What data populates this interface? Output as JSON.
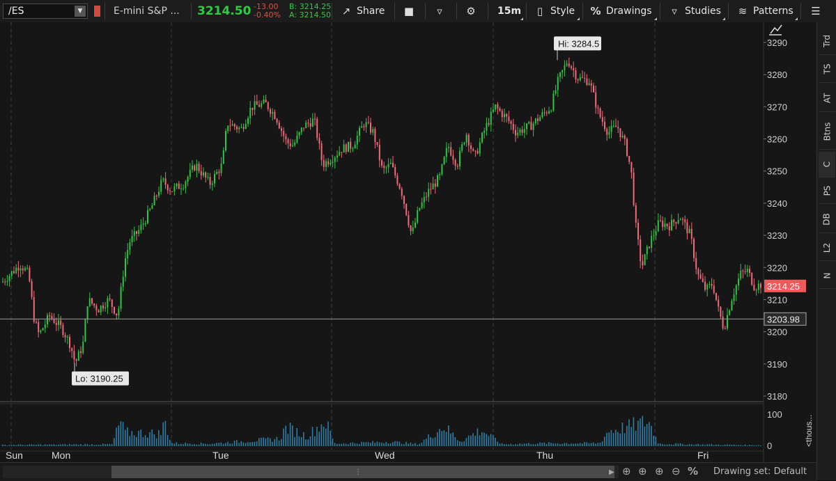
{
  "toolbar": {
    "symbol": "/ES",
    "instrument_name": "E-mini S&P ...",
    "last_price": "3214.50",
    "net_change": "-13.00",
    "pct_change": "-0.40%",
    "bid": "B: 3214.25",
    "ask": "A: 3214.50",
    "share_label": "Share",
    "timeframe": "15m",
    "style_label": "Style",
    "drawings_label": "Drawings",
    "studies_label": "Studies",
    "patterns_label": "Patterns",
    "colors": {
      "last_price": "#2ecc40",
      "change": "#e74c3c",
      "bidask": "#2ecc40"
    }
  },
  "right_panel": {
    "tabs": [
      "Trd",
      "TS",
      "AT",
      "Btns",
      "C",
      "PS",
      "DB",
      "L2",
      "N"
    ],
    "active": "C"
  },
  "bottom_bar": {
    "drawing_set": "Drawing set: Default"
  },
  "chart_data": {
    "type": "candlestick",
    "price_axis": {
      "min": 3180,
      "max": 3290,
      "ticks": [
        3180,
        3190,
        3200,
        3210,
        3220,
        3230,
        3240,
        3250,
        3260,
        3270,
        3280,
        3290
      ]
    },
    "volume_axis": {
      "ticks": [
        "0",
        "100"
      ],
      "unit_label": "<thous..."
    },
    "days": [
      "Sun",
      "Mon",
      "Tue",
      "Wed",
      "Thu",
      "Fri"
    ],
    "high_label": "Hi: 3284.5",
    "low_label": "Lo: 3190.25",
    "last_price_label": "3214.25",
    "crosshair_price_label": "3203.98",
    "crosshair_price": 3203.98,
    "high": 3284.5,
    "low": 3190.25,
    "last": 3214.25,
    "path_keypoints": [
      [
        0,
        3215
      ],
      [
        28,
        3221
      ],
      [
        40,
        3218
      ],
      [
        48,
        3204
      ],
      [
        55,
        3199
      ],
      [
        70,
        3205
      ],
      [
        88,
        3201
      ],
      [
        100,
        3196
      ],
      [
        107,
        3190.25
      ],
      [
        118,
        3196
      ],
      [
        125,
        3210
      ],
      [
        140,
        3207
      ],
      [
        155,
        3210
      ],
      [
        168,
        3205
      ],
      [
        178,
        3222
      ],
      [
        185,
        3228
      ],
      [
        200,
        3232
      ],
      [
        215,
        3238
      ],
      [
        232,
        3247
      ],
      [
        245,
        3244
      ],
      [
        262,
        3246
      ],
      [
        280,
        3252
      ],
      [
        300,
        3246
      ],
      [
        318,
        3252
      ],
      [
        325,
        3265
      ],
      [
        345,
        3263
      ],
      [
        360,
        3270
      ],
      [
        380,
        3271
      ],
      [
        395,
        3267
      ],
      [
        410,
        3259
      ],
      [
        420,
        3258
      ],
      [
        435,
        3264
      ],
      [
        450,
        3266
      ],
      [
        462,
        3252
      ],
      [
        475,
        3254
      ],
      [
        490,
        3257
      ],
      [
        505,
        3258
      ],
      [
        522,
        3265
      ],
      [
        535,
        3262
      ],
      [
        548,
        3250
      ],
      [
        560,
        3252
      ],
      [
        575,
        3244
      ],
      [
        590,
        3230
      ],
      [
        600,
        3238
      ],
      [
        615,
        3244
      ],
      [
        630,
        3248
      ],
      [
        642,
        3258
      ],
      [
        655,
        3252
      ],
      [
        668,
        3262
      ],
      [
        680,
        3254
      ],
      [
        695,
        3263
      ],
      [
        710,
        3270
      ],
      [
        728,
        3266
      ],
      [
        740,
        3262
      ],
      [
        760,
        3264
      ],
      [
        775,
        3267
      ],
      [
        790,
        3270
      ],
      [
        800,
        3278
      ],
      [
        814,
        3284.5
      ],
      [
        828,
        3279
      ],
      [
        845,
        3278
      ],
      [
        858,
        3268
      ],
      [
        872,
        3262
      ],
      [
        885,
        3264
      ],
      [
        897,
        3258
      ],
      [
        905,
        3250
      ],
      [
        912,
        3232
      ],
      [
        920,
        3220
      ],
      [
        932,
        3228
      ],
      [
        945,
        3234
      ],
      [
        960,
        3233
      ],
      [
        975,
        3236
      ],
      [
        990,
        3230
      ],
      [
        1000,
        3218
      ],
      [
        1012,
        3213
      ],
      [
        1022,
        3215
      ],
      [
        1030,
        3207
      ],
      [
        1038,
        3201
      ],
      [
        1050,
        3211
      ],
      [
        1062,
        3218
      ],
      [
        1072,
        3219
      ],
      [
        1082,
        3214
      ],
      [
        1094,
        3215
      ]
    ],
    "volume_profile": [
      [
        0,
        5
      ],
      [
        160,
        8
      ],
      [
        172,
        100
      ],
      [
        178,
        55
      ],
      [
        230,
        50
      ],
      [
        236,
        100
      ],
      [
        245,
        12
      ],
      [
        300,
        10
      ],
      [
        400,
        30
      ],
      [
        410,
        75
      ],
      [
        440,
        40
      ],
      [
        466,
        100
      ],
      [
        480,
        10
      ],
      [
        560,
        18
      ],
      [
        600,
        8
      ],
      [
        636,
        80
      ],
      [
        660,
        20
      ],
      [
        690,
        65
      ],
      [
        720,
        8
      ],
      [
        780,
        12
      ],
      [
        860,
        12
      ],
      [
        872,
        60
      ],
      [
        905,
        80
      ],
      [
        930,
        100
      ],
      [
        945,
        10
      ],
      [
        1030,
        6
      ],
      [
        1094,
        4
      ]
    ]
  }
}
